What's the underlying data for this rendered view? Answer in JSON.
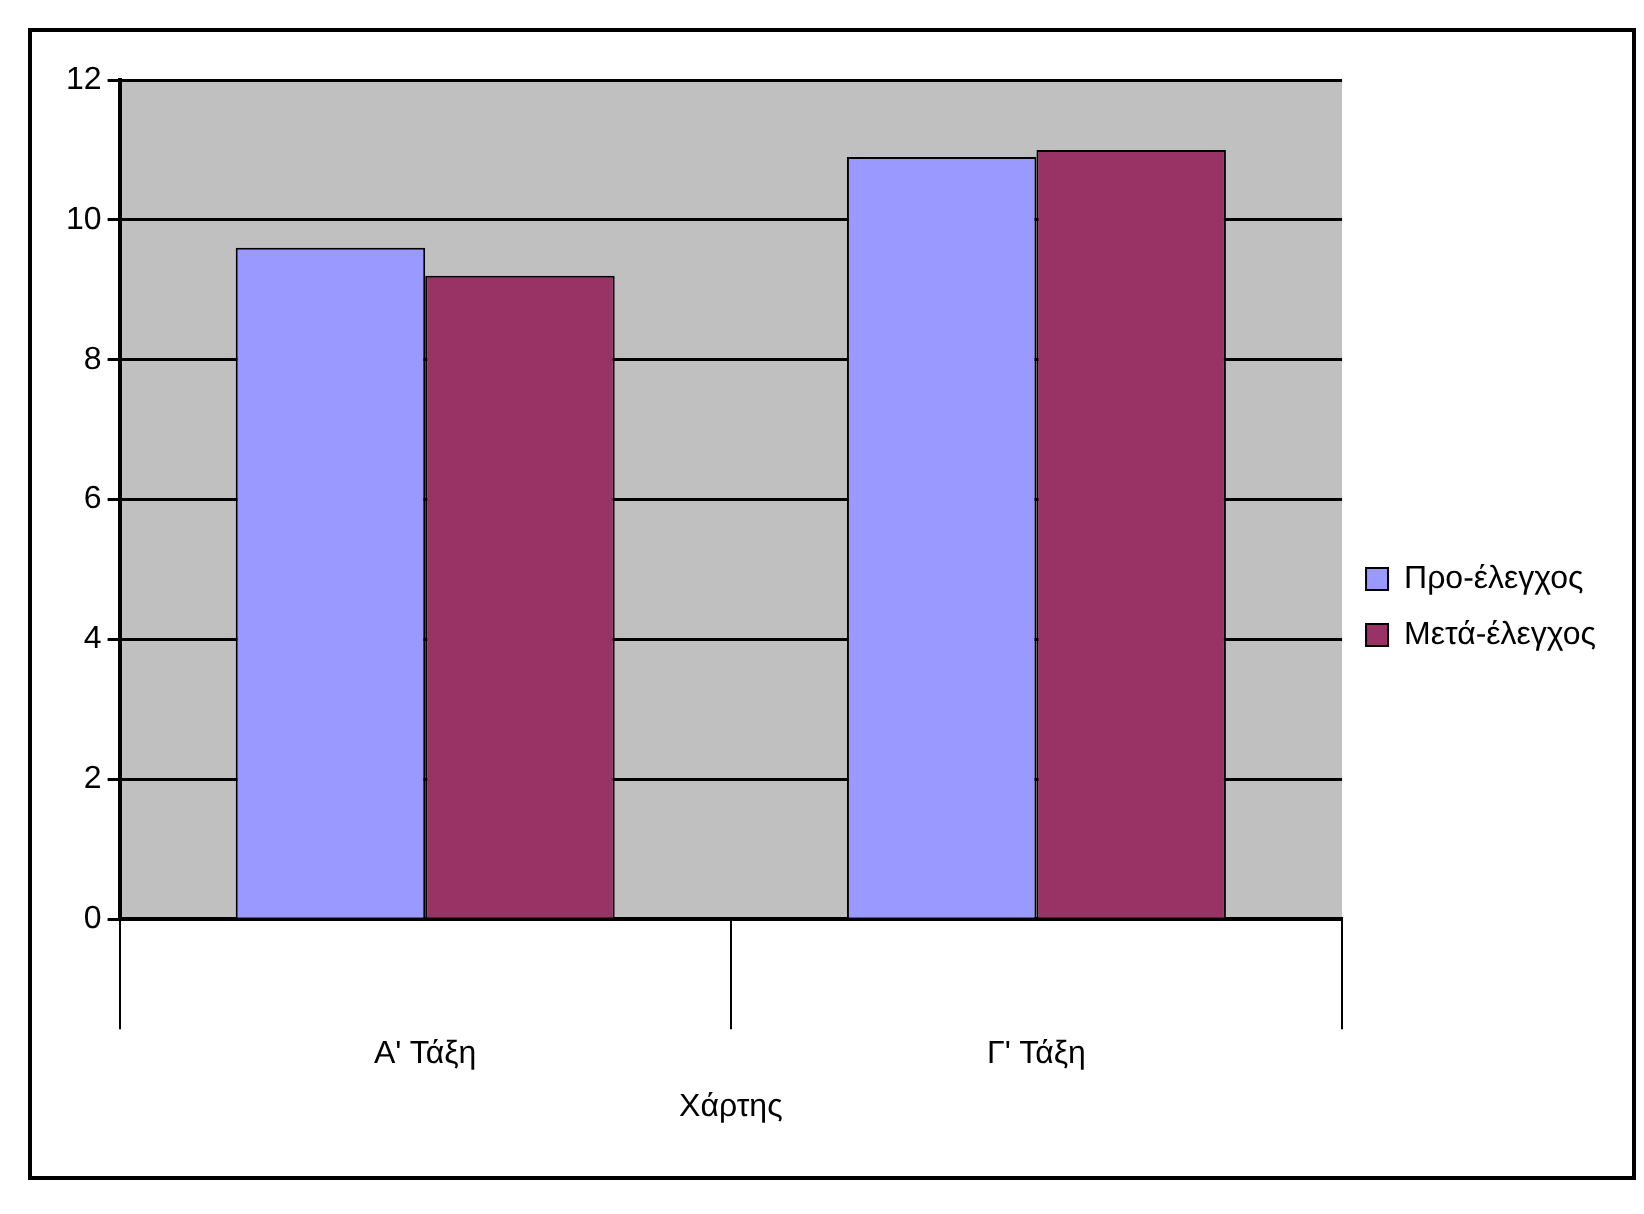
{
  "chart_data": {
    "type": "bar",
    "categories": [
      "Α' Τάξη",
      "Γ' Τάξη"
    ],
    "xlabel": "Χάρτης",
    "series": [
      {
        "name": "Προ-έλεγχος",
        "color": "#9999ff",
        "values": [
          9.6,
          10.9
        ]
      },
      {
        "name": "Μετά-έλεγχος",
        "color": "#993366",
        "values": [
          9.2,
          11.0
        ]
      }
    ],
    "ylim": [
      0,
      12
    ],
    "yticks": [
      0,
      2,
      4,
      6,
      8,
      10,
      12
    ],
    "grid": "y",
    "legend": "right"
  }
}
